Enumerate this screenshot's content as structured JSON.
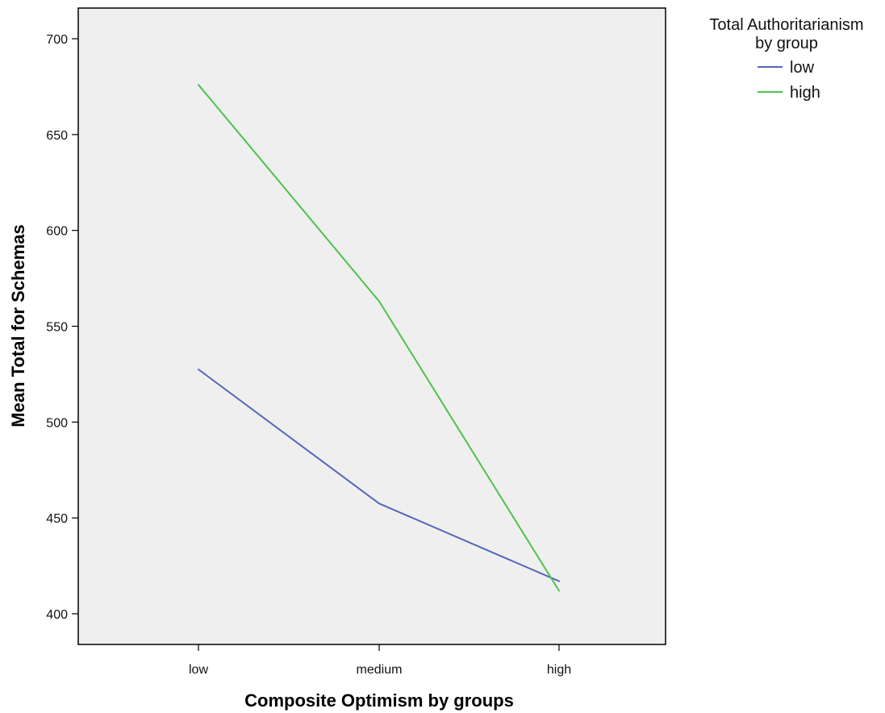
{
  "chart_data": {
    "type": "line",
    "categories": [
      "low",
      "medium",
      "high"
    ],
    "series": [
      {
        "name": "low",
        "values": [
          527.5,
          457.5,
          417.0
        ],
        "color": "#5566bb"
      },
      {
        "name": "high",
        "values": [
          676.0,
          563.0,
          412.0
        ],
        "color": "#4cc24c"
      }
    ],
    "xlabel": "Composite Optimism by groups",
    "ylabel": "Mean Total for Schemas",
    "ylim": [
      384,
      716
    ],
    "yticks": [
      400,
      450,
      500,
      550,
      600,
      650,
      700
    ],
    "legend": {
      "title_lines": [
        "Total Authoritarianism",
        "by group"
      ],
      "position": "top-right"
    },
    "grid": false,
    "plot_background": "#efefef"
  }
}
